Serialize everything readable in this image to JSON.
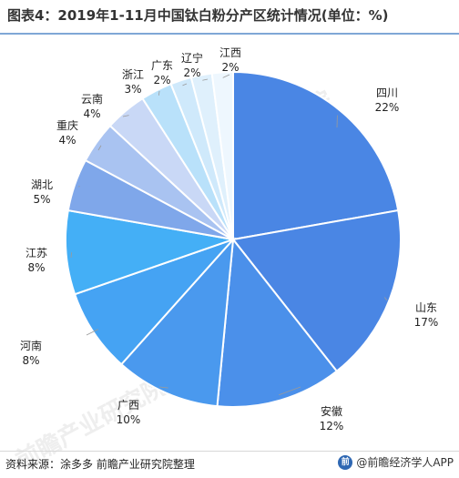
{
  "title": "图表4：2019年1-11月中国钛白粉分产区统计情况(单位：%)",
  "source": "资料来源：涂多多 前瞻产业研究院整理",
  "brand": "@前瞻经济学人APP",
  "watermark": "前瞻产业研究院",
  "chart_data": {
    "type": "pie",
    "title": "图表4：2019年1-11月中国钛白粉分产区统计情况(单位：%)",
    "unit": "%",
    "slices": [
      {
        "name": "四川",
        "value": 22,
        "label": "22%",
        "color": "#4a86e4"
      },
      {
        "name": "山东",
        "value": 17,
        "label": "17%",
        "color": "#4a86e4"
      },
      {
        "name": "安徽",
        "value": 12,
        "label": "12%",
        "color": "#4b90ea"
      },
      {
        "name": "广西",
        "value": 10,
        "label": "10%",
        "color": "#4a99ee"
      },
      {
        "name": "河南",
        "value": 8,
        "label": "8%",
        "color": "#45a3f3"
      },
      {
        "name": "江苏",
        "value": 8,
        "label": "8%",
        "color": "#44aff6"
      },
      {
        "name": "湖北",
        "value": 5,
        "label": "5%",
        "color": "#7fa7ea"
      },
      {
        "name": "重庆",
        "value": 4,
        "label": "4%",
        "color": "#a9c3f1"
      },
      {
        "name": "云南",
        "value": 4,
        "label": "4%",
        "color": "#c9d8f6"
      },
      {
        "name": "浙江",
        "value": 3,
        "label": "3%",
        "color": "#b9e1fa"
      },
      {
        "name": "广东",
        "value": 2,
        "label": "2%",
        "color": "#cfe9fb"
      },
      {
        "name": "辽宁",
        "value": 2,
        "label": "2%",
        "color": "#dff0fc"
      },
      {
        "name": "江西",
        "value": 2,
        "label": "2%",
        "color": "#eef7fe"
      }
    ]
  }
}
